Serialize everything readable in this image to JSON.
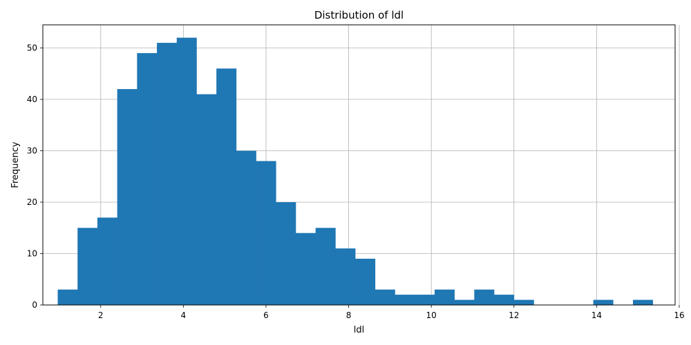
{
  "chart_data": {
    "type": "bar",
    "title": "Distribution of ldl",
    "xlabel": "ldl",
    "ylabel": "Frequency",
    "xlim": [
      0.6,
      15.9
    ],
    "ylim": [
      0,
      54.5
    ],
    "x_ticks": [
      2,
      4,
      6,
      8,
      10,
      12,
      14,
      16
    ],
    "y_ticks": [
      0,
      10,
      20,
      30,
      40,
      50
    ],
    "grid": true,
    "bar_color": "#1f77b4",
    "bin_start": 0.96,
    "bin_width": 0.48,
    "bins": [
      {
        "x0": 0.96,
        "x1": 1.44,
        "value": 3
      },
      {
        "x0": 1.44,
        "x1": 1.92,
        "value": 15
      },
      {
        "x0": 1.92,
        "x1": 2.4,
        "value": 17
      },
      {
        "x0": 2.4,
        "x1": 2.88,
        "value": 42
      },
      {
        "x0": 2.88,
        "x1": 3.36,
        "value": 49
      },
      {
        "x0": 3.36,
        "x1": 3.84,
        "value": 51
      },
      {
        "x0": 3.84,
        "x1": 4.32,
        "value": 52
      },
      {
        "x0": 4.32,
        "x1": 4.8,
        "value": 41
      },
      {
        "x0": 4.8,
        "x1": 5.28,
        "value": 46
      },
      {
        "x0": 5.28,
        "x1": 5.76,
        "value": 30
      },
      {
        "x0": 5.76,
        "x1": 6.24,
        "value": 28
      },
      {
        "x0": 6.24,
        "x1": 6.72,
        "value": 20
      },
      {
        "x0": 6.72,
        "x1": 7.2,
        "value": 14
      },
      {
        "x0": 7.2,
        "x1": 7.68,
        "value": 15
      },
      {
        "x0": 7.68,
        "x1": 8.16,
        "value": 11
      },
      {
        "x0": 8.16,
        "x1": 8.64,
        "value": 9
      },
      {
        "x0": 8.64,
        "x1": 9.12,
        "value": 3
      },
      {
        "x0": 9.12,
        "x1": 9.6,
        "value": 2
      },
      {
        "x0": 9.6,
        "x1": 10.08,
        "value": 2
      },
      {
        "x0": 10.08,
        "x1": 10.56,
        "value": 3
      },
      {
        "x0": 10.56,
        "x1": 11.04,
        "value": 1
      },
      {
        "x0": 11.04,
        "x1": 11.52,
        "value": 3
      },
      {
        "x0": 11.52,
        "x1": 12.0,
        "value": 2
      },
      {
        "x0": 12.0,
        "x1": 12.48,
        "value": 1
      },
      {
        "x0": 12.48,
        "x1": 12.96,
        "value": 0
      },
      {
        "x0": 12.96,
        "x1": 13.44,
        "value": 0
      },
      {
        "x0": 13.44,
        "x1": 13.92,
        "value": 0
      },
      {
        "x0": 13.92,
        "x1": 14.4,
        "value": 1
      },
      {
        "x0": 14.4,
        "x1": 14.88,
        "value": 0
      },
      {
        "x0": 14.88,
        "x1": 15.36,
        "value": 1
      }
    ]
  }
}
